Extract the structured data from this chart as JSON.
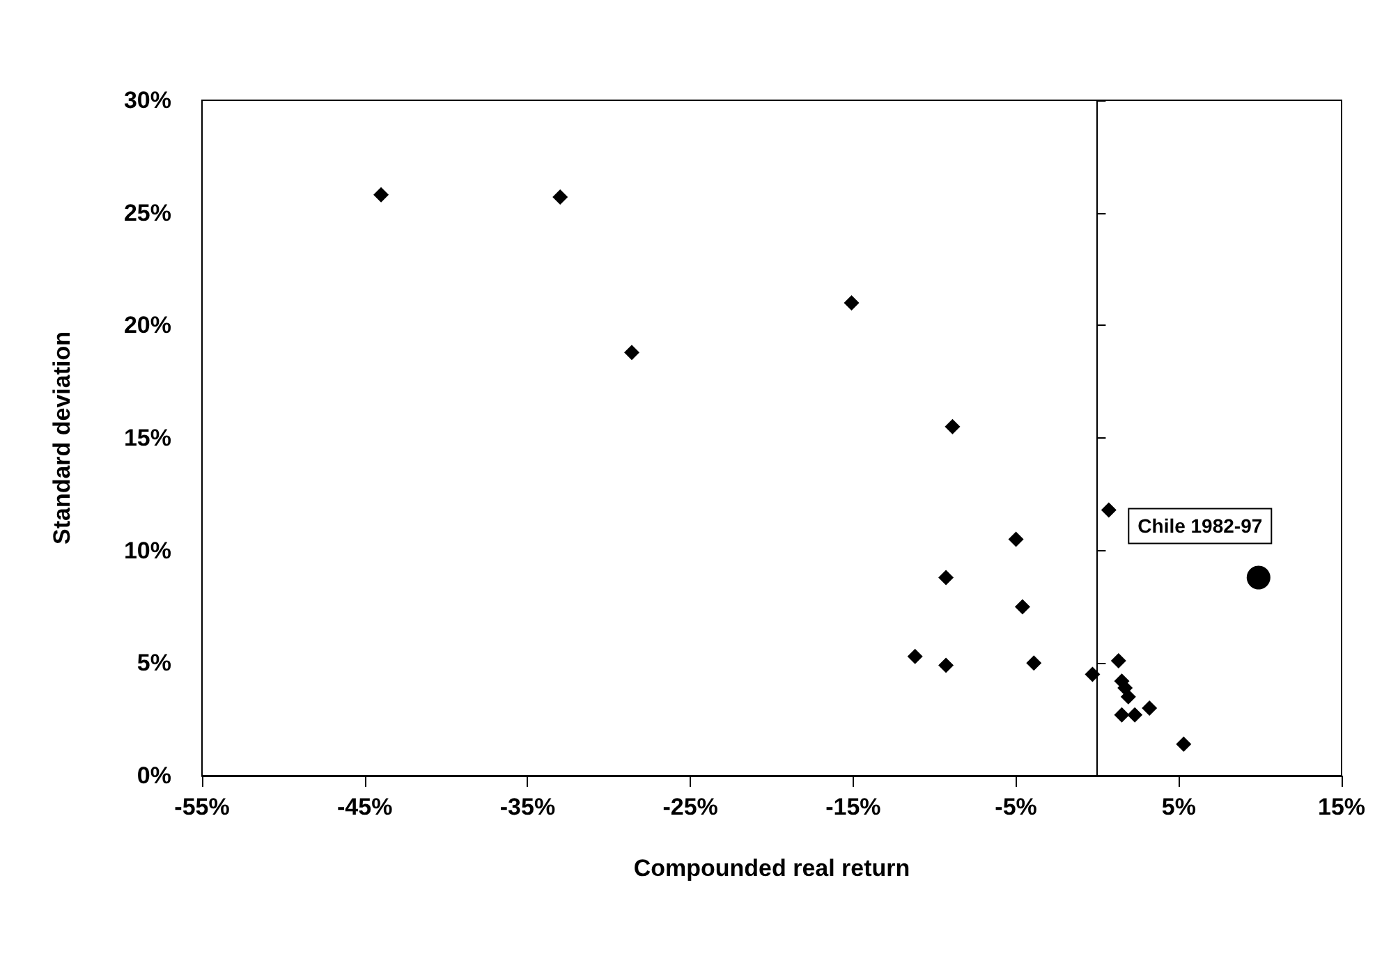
{
  "chart_data": {
    "type": "scatter",
    "xlabel": "Compounded real return",
    "ylabel": "Standard deviation",
    "xlim": [
      -55,
      15
    ],
    "ylim": [
      0,
      30
    ],
    "xticks": [
      {
        "value": -55,
        "label": "-55%"
      },
      {
        "value": -45,
        "label": "-45%"
      },
      {
        "value": -35,
        "label": "-35%"
      },
      {
        "value": -25,
        "label": "-25%"
      },
      {
        "value": -15,
        "label": "-15%"
      },
      {
        "value": -5,
        "label": "-5%"
      },
      {
        "value": 5,
        "label": "5%"
      },
      {
        "value": 15,
        "label": "15%"
      }
    ],
    "yticks": [
      {
        "value": 0,
        "label": "0%"
      },
      {
        "value": 5,
        "label": "5%"
      },
      {
        "value": 10,
        "label": "10%"
      },
      {
        "value": 15,
        "label": "15%"
      },
      {
        "value": 20,
        "label": "20%"
      },
      {
        "value": 25,
        "label": "25%"
      },
      {
        "value": 30,
        "label": "30%"
      }
    ],
    "grid": false,
    "series": [
      {
        "color": "#000000",
        "marker": "diamond",
        "x": [
          -44.0,
          -33.0,
          -28.6,
          -15.1,
          -8.9,
          0.7,
          -5.0,
          -9.3,
          -4.6,
          -11.2,
          -9.3,
          -3.9,
          -0.3,
          1.3,
          1.5,
          1.7,
          1.9,
          1.5,
          2.3,
          3.2,
          5.3
        ],
        "values": [
          25.8,
          25.7,
          18.8,
          21.0,
          15.5,
          11.8,
          10.5,
          8.8,
          7.5,
          5.3,
          4.9,
          5.0,
          4.5,
          5.1,
          4.2,
          3.9,
          3.5,
          2.7,
          2.7,
          3.0,
          1.4
        ]
      },
      {
        "color": "#000000",
        "marker": "circle",
        "x": [
          9.9
        ],
        "values": [
          8.8
        ]
      }
    ],
    "ref_lines": [
      {
        "axis": "x",
        "value": 0,
        "color": "#000000"
      }
    ],
    "annotations": [
      {
        "text": "Chile 1982-97",
        "x": 9.9,
        "y": 8.8
      }
    ]
  }
}
